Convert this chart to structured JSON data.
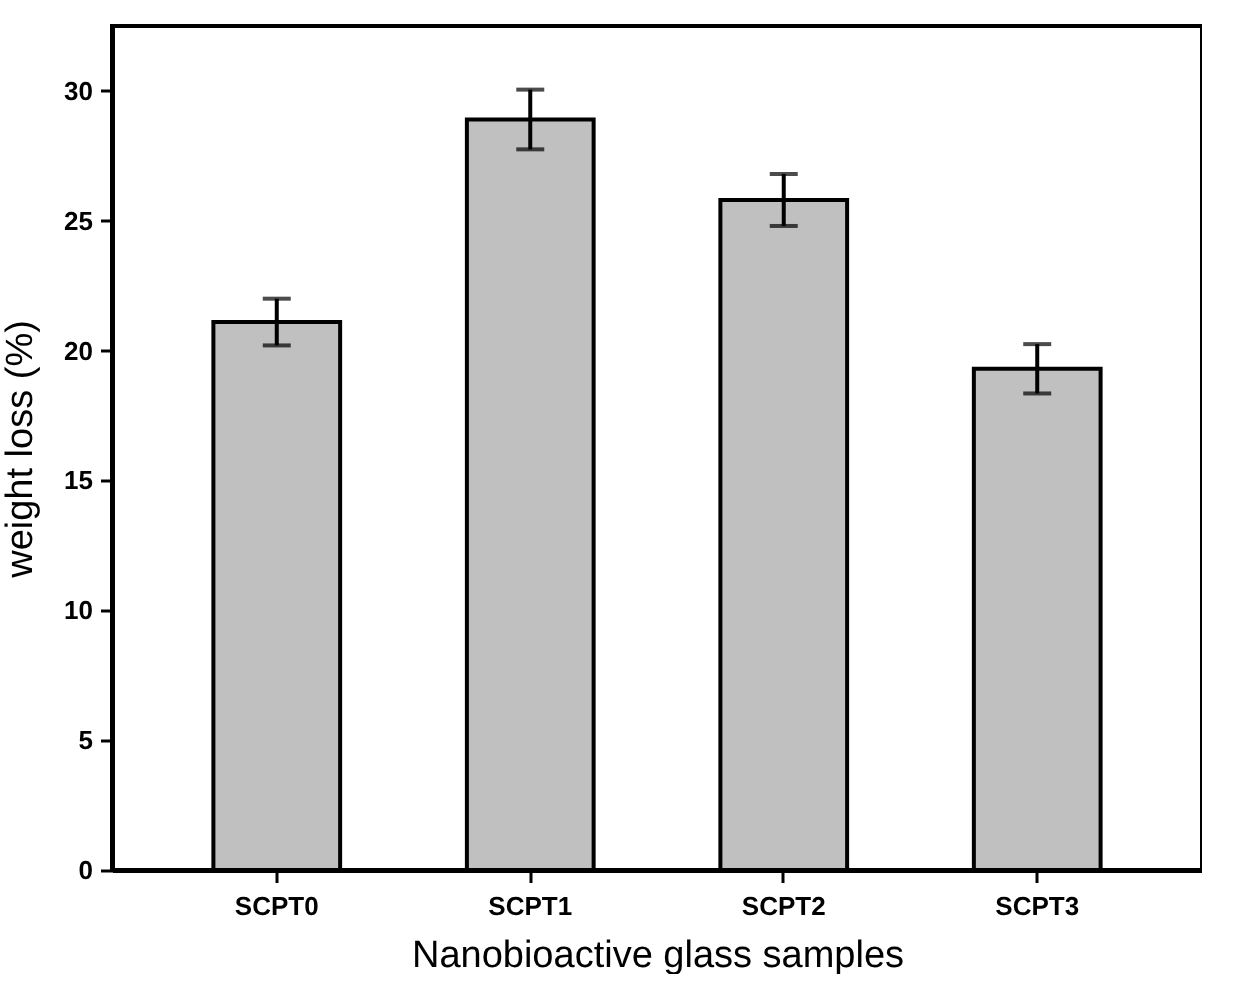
{
  "chart_data": {
    "type": "bar",
    "xlabel": "Nanobioactive glass samples",
    "ylabel": "weight loss (%)",
    "categories": [
      "SCPT0",
      "SCPT1",
      "SCPT2",
      "SCPT3"
    ],
    "values": [
      21.1,
      28.9,
      25.8,
      19.3
    ],
    "errors": [
      0.9,
      1.15,
      1.0,
      0.95
    ],
    "color": "#c0c0c0",
    "ylim": [
      0,
      32.5
    ],
    "yticks": [
      0,
      5,
      10,
      15,
      20,
      25,
      30
    ],
    "grid": false
  }
}
